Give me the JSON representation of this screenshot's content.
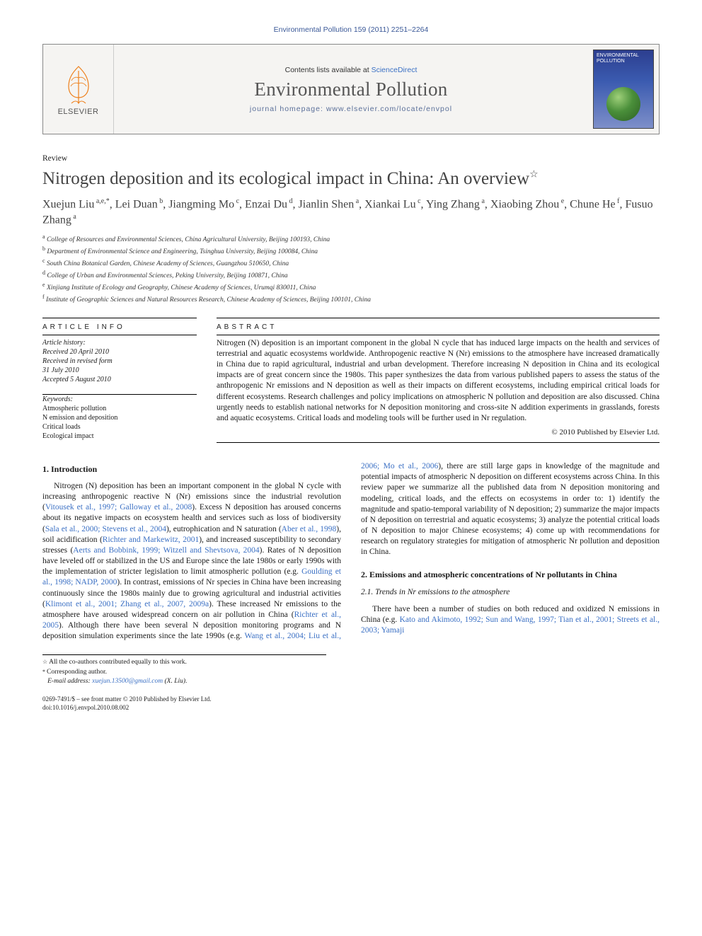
{
  "running_head": "Environmental Pollution 159 (2011) 2251–2264",
  "masthead": {
    "publisher_label": "ELSEVIER",
    "contents_prefix": "Contents lists available at ",
    "contents_link": "ScienceDirect",
    "journal_name": "Environmental Pollution",
    "homepage_prefix": "journal homepage: ",
    "homepage_url": "www.elsevier.com/locate/envpol",
    "cover_title": "ENVIRONMENTAL POLLUTION"
  },
  "article": {
    "type": "Review",
    "title": "Nitrogen deposition and its ecological impact in China: An overview",
    "title_star": "☆",
    "authors_html": "Xuejun Liu<sup> a,e,*</sup>, Lei Duan<sup> b</sup>, Jiangming Mo<sup> c</sup>, Enzai Du<sup> d</sup>, Jianlin Shen<sup> a</sup>, Xiankai Lu<sup> c</sup>, Ying Zhang<sup> a</sup>, Xiaobing Zhou<sup> e</sup>, Chune He<sup> f</sup>, Fusuo Zhang<sup> a</sup>",
    "affiliations": [
      {
        "sup": "a",
        "text": "College of Resources and Environmental Sciences, China Agricultural University, Beijing 100193, China"
      },
      {
        "sup": "b",
        "text": "Department of Environmental Science and Engineering, Tsinghua University, Beijing 100084, China"
      },
      {
        "sup": "c",
        "text": "South China Botanical Garden, Chinese Academy of Sciences, Guangzhou 510650, China"
      },
      {
        "sup": "d",
        "text": "College of Urban and Environmental Sciences, Peking University, Beijing 100871, China"
      },
      {
        "sup": "e",
        "text": "Xinjiang Institute of Ecology and Geography, Chinese Academy of Sciences, Urumqi 830011, China"
      },
      {
        "sup": "f",
        "text": "Institute of Geographic Sciences and Natural Resources Research, Chinese Academy of Sciences, Beijing 100101, China"
      }
    ]
  },
  "info": {
    "head": "ARTICLE INFO",
    "history_label": "Article history:",
    "received": "Received 20 April 2010",
    "revised1": "Received in revised form",
    "revised2": "31 July 2010",
    "accepted": "Accepted 5 August 2010",
    "keywords_label": "Keywords:",
    "keywords": [
      "Atmospheric pollution",
      "N emission and deposition",
      "Critical loads",
      "Ecological impact"
    ]
  },
  "abstract": {
    "head": "ABSTRACT",
    "text": "Nitrogen (N) deposition is an important component in the global N cycle that has induced large impacts on the health and services of terrestrial and aquatic ecosystems worldwide. Anthropogenic reactive N (Nr) emissions to the atmosphere have increased dramatically in China due to rapid agricultural, industrial and urban development. Therefore increasing N deposition in China and its ecological impacts are of great concern since the 1980s. This paper synthesizes the data from various published papers to assess the status of the anthropogenic Nr emissions and N deposition as well as their impacts on different ecosystems, including empirical critical loads for different ecosystems. Research challenges and policy implications on atmospheric N pollution and deposition are also discussed. China urgently needs to establish national networks for N deposition monitoring and cross-site N addition experiments in grasslands, forests and aquatic ecosystems. Critical loads and modeling tools will be further used in Nr regulation.",
    "copyright": "© 2010 Published by Elsevier Ltd."
  },
  "sections": {
    "s1_head": "1. Introduction",
    "s1_body": "Nitrogen (N) deposition has been an important component in the global N cycle with increasing anthropogenic reactive N (Nr) emissions since the industrial revolution (<span class=\"cite\">Vitousek et al., 1997; Galloway et al., 2008</span>). Excess N deposition has aroused concerns about its negative impacts on ecosystem health and services such as loss of biodiversity (<span class=\"cite\">Sala et al., 2000; Stevens et al., 2004</span>), eutrophication and N saturation (<span class=\"cite\">Aber et al., 1998</span>), soil acidification (<span class=\"cite\">Richter and Markewitz, 2001</span>), and increased susceptibility to secondary stresses (<span class=\"cite\">Aerts and Bobbink, 1999; Witzell and Shevtsova, 2004</span>). Rates of N deposition have leveled off or stabilized in the US and Europe since the late 1980s or early 1990s with the implementation of stricter legislation to limit atmospheric pollution (e.g. <span class=\"cite\">Goulding et al., 1998; NADP, 2000</span>). In contrast, emissions of Nr species in China have been increasing continuously since the 1980s mainly due to growing agricultural and industrial activities (<span class=\"cite\">Klimont et al., 2001; Zhang et al., 2007, 2009a</span>). These increased Nr emissions to the atmosphere have aroused widespread concern on air pollution in China (<span class=\"cite\">Richter et al., 2005</span>). Although there have been several N deposition monitoring programs and N deposition simulation experiments since the late 1990s (e.g. <span class=\"cite\">Wang et al., 2004; Liu et al., 2006; Mo et al., 2006</span>), there are still large gaps in knowledge of the magnitude and potential impacts of atmospheric N deposition on different ecosystems across China. In this review paper we summarize all the published data from N deposition monitoring and modeling, critical loads, and the effects on ecosystems in order to: 1) identify the magnitude and spatio-temporal variability of N deposition; 2) summarize the major impacts of N deposition on terrestrial and aquatic ecosystems; 3) analyze the potential critical loads of N deposition to major Chinese ecosystems; 4) come up with recommendations for research on regulatory strategies for mitigation of atmospheric Nr pollution and deposition in China.",
    "s2_head": "2. Emissions and atmospheric concentrations of Nr pollutants in China",
    "s2_1_head": "2.1. Trends in Nr emissions to the atmosphere",
    "s2_1_body": "There have been a number of studies on both reduced and oxidized N emissions in China (e.g. <span class=\"cite\">Kato and Akimoto, 1992; Sun and Wang, 1997; Tian et al., 2001; Streets et al., 2003; Yamaji</span>"
  },
  "footnotes": {
    "star_note": "All the co-authors contributed equally to this work.",
    "corr_note": "Corresponding author.",
    "email_label": "E-mail address: ",
    "email": "xuejun.13500@gmail.com",
    "email_paren": " (X. Liu)."
  },
  "bottom": {
    "issn_line": "0269-7491/$ – see front matter © 2010 Published by Elsevier Ltd.",
    "doi_line": "doi:10.1016/j.envpol.2010.08.002"
  },
  "colors": {
    "link": "#3b70c4",
    "header_text": "#3b5998",
    "brand_elsevier": "#ee7f1a"
  }
}
